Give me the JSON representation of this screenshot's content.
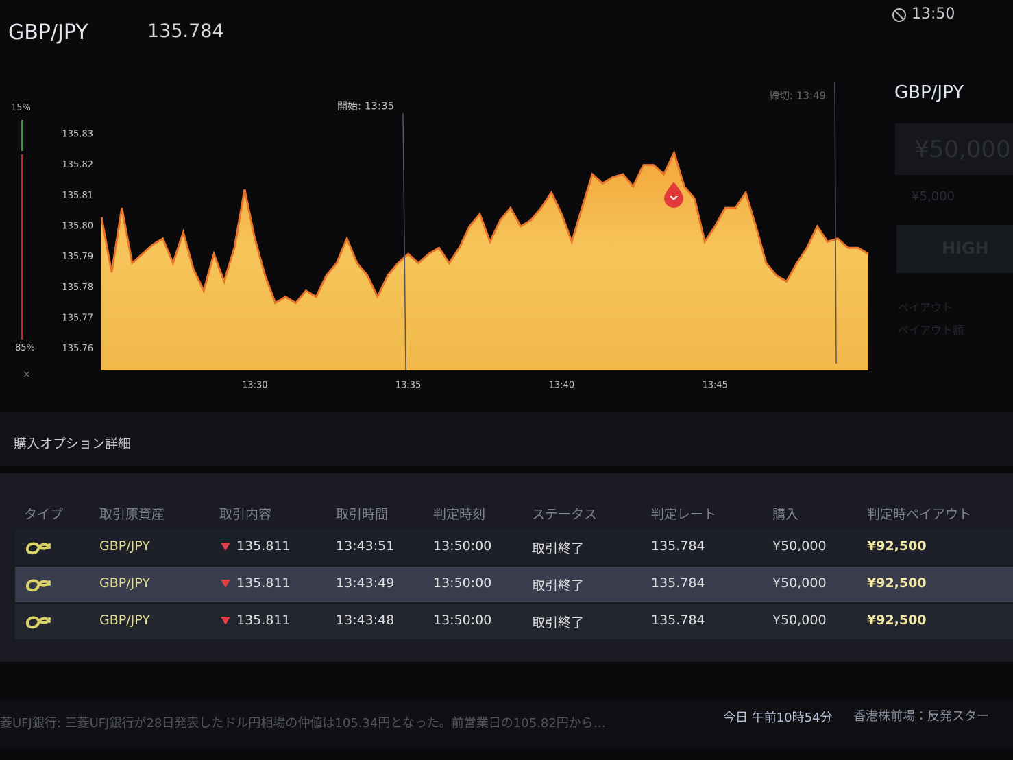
{
  "header": {
    "pair": "GBP/JPY",
    "price": "135.784",
    "clock": "13:50"
  },
  "sentiment": {
    "high": "15%",
    "low": "85%",
    "close": "×"
  },
  "chart_data": {
    "type": "area",
    "annotations": [
      "開始: 13:35",
      "締切: 13:49"
    ],
    "categories": [
      null,
      null,
      null,
      null,
      null,
      null,
      null,
      null,
      null,
      null,
      null,
      null,
      null,
      null,
      null,
      "13:30",
      null,
      null,
      null,
      null,
      null,
      null,
      null,
      null,
      null,
      null,
      null,
      null,
      null,
      null,
      "13:35",
      null,
      null,
      null,
      null,
      null,
      null,
      null,
      null,
      null,
      null,
      null,
      null,
      null,
      null,
      "13:40",
      null,
      null,
      null,
      null,
      null,
      null,
      null,
      null,
      null,
      null,
      null,
      null,
      null,
      null,
      "13:45",
      null,
      null,
      null,
      null,
      null,
      null,
      null,
      null,
      null,
      null,
      null,
      null,
      null,
      null,
      null
    ],
    "values": [
      135.803,
      135.785,
      135.806,
      135.788,
      135.791,
      135.794,
      135.796,
      135.788,
      135.798,
      135.786,
      135.779,
      135.791,
      135.782,
      135.793,
      135.812,
      135.796,
      135.784,
      135.775,
      135.777,
      135.775,
      135.779,
      135.777,
      135.784,
      135.788,
      135.796,
      135.788,
      135.784,
      135.777,
      135.784,
      135.788,
      135.791,
      135.788,
      135.791,
      135.793,
      135.788,
      135.793,
      135.8,
      135.804,
      135.795,
      135.802,
      135.806,
      135.8,
      135.802,
      135.806,
      135.811,
      135.804,
      135.795,
      135.806,
      135.817,
      135.814,
      135.816,
      135.817,
      135.813,
      135.82,
      135.82,
      135.817,
      135.824,
      135.813,
      135.809,
      135.795,
      135.8,
      135.806,
      135.806,
      135.811,
      135.8,
      135.788,
      135.784,
      135.782,
      135.788,
      135.793,
      135.8,
      135.795,
      135.796,
      135.793,
      135.793,
      135.791
    ],
    "ylim": [
      135.753,
      135.834
    ],
    "yticks": [
      135.76,
      135.77,
      135.78,
      135.79,
      {
        "value": 135.8,
        "label": "135.80"
      },
      135.81,
      135.82,
      135.83
    ],
    "color": "#f2b03c",
    "line_color": "#e8742c"
  },
  "trade_panel": {
    "pair": "GBP/JPY",
    "amount": "¥50,000",
    "preset": "¥5,000",
    "button": "HIGH",
    "payout": "ペイアウト",
    "payout_amount": "ペイアウト額"
  },
  "details": {
    "title": "購入オプション詳細",
    "columns": [
      "タイプ",
      "取引原資産",
      "取引内容",
      "取引時間",
      "判定時刻",
      "ステータス",
      "判定レート",
      "購入",
      "判定時ペイアウト"
    ],
    "rows": [
      [
        "GBP/JPY",
        "135.811",
        "13:43:51",
        "13:50:00",
        "取引終了",
        "135.784",
        "¥50,000",
        "¥92,500"
      ],
      [
        "GBP/JPY",
        "135.811",
        "13:43:49",
        "13:50:00",
        "取引終了",
        "135.784",
        "¥50,000",
        "¥92,500"
      ],
      [
        "GBP/JPY",
        "135.811",
        "13:43:48",
        "13:50:00",
        "取引終了",
        "135.784",
        "¥50,000",
        "¥92,500"
      ]
    ]
  },
  "ticker": {
    "left": "菱UFJ銀行: 三菱UFJ銀行が28日発表したドル円相場の仲値は105.34円となった。前営業日の105.82円から…",
    "time": "今日 午前10時54分",
    "right": "香港株前場：反発スター"
  }
}
